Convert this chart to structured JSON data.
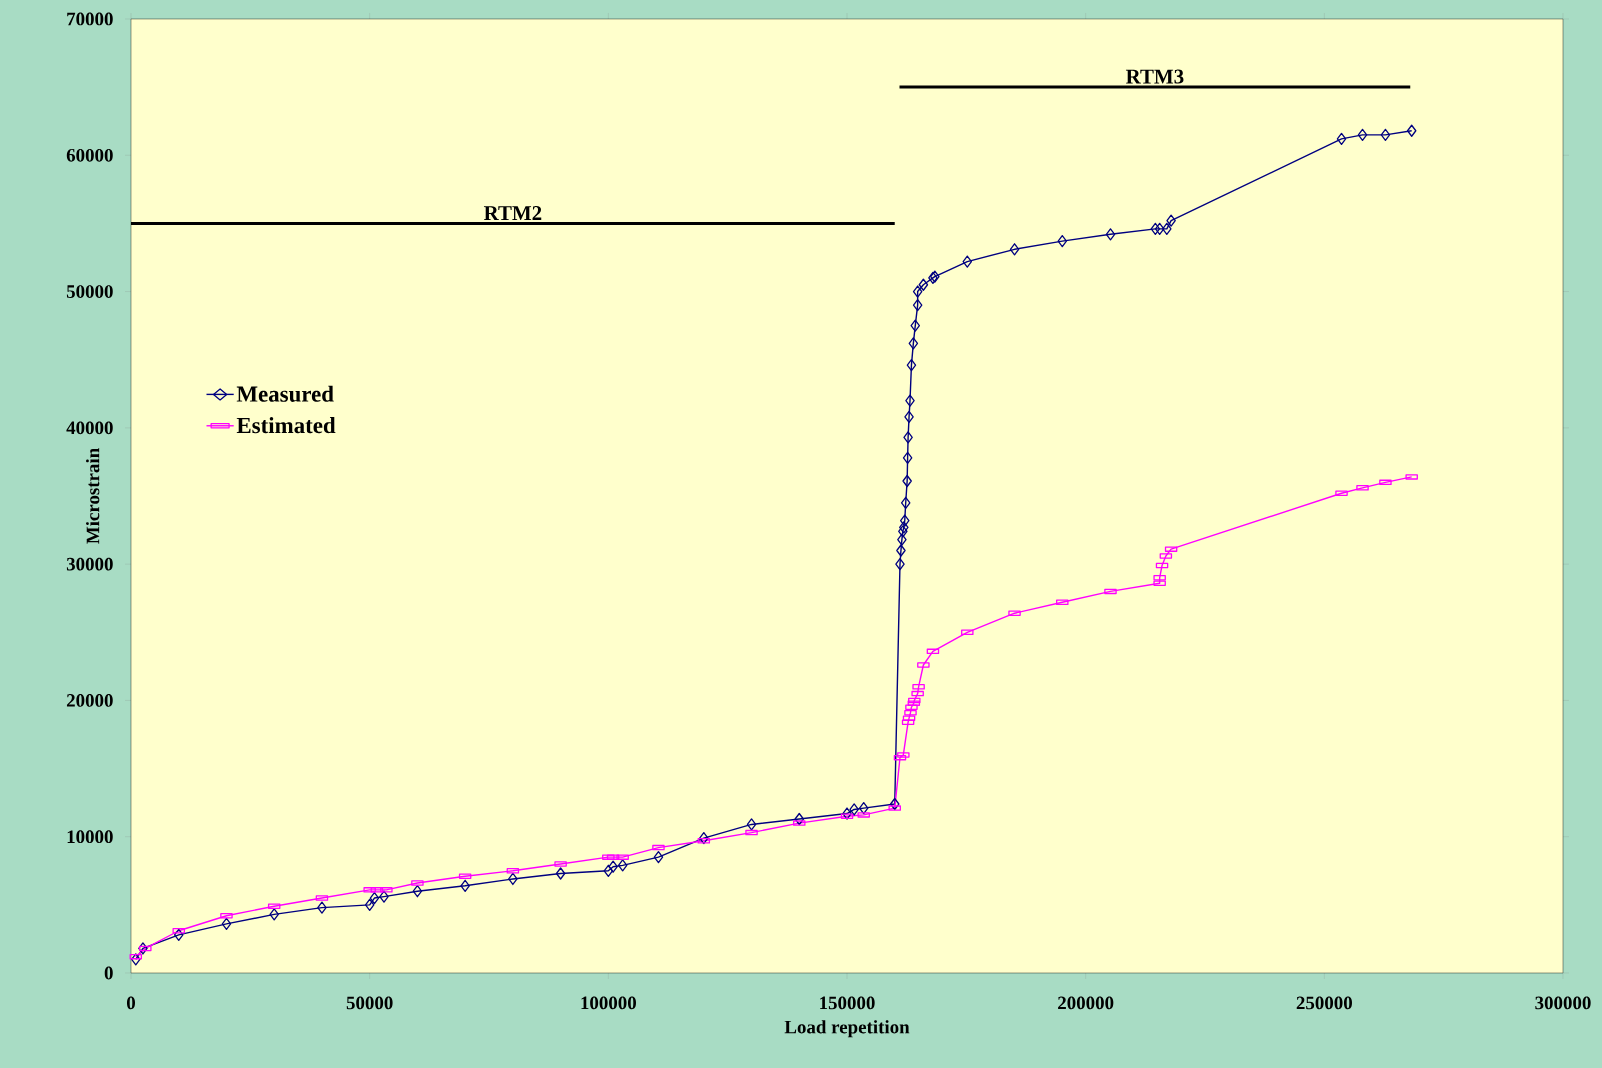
{
  "chart_data": {
    "type": "line",
    "xlabel": "Load repetition",
    "ylabel": "Microstrain",
    "xlim": [
      0,
      300000
    ],
    "xticks": [
      0,
      50000,
      100000,
      150000,
      200000,
      250000,
      300000
    ],
    "ylim": [
      0,
      70000
    ],
    "yticks": [
      0,
      10000,
      20000,
      30000,
      40000,
      50000,
      60000,
      70000
    ],
    "legend": "left",
    "grid": false,
    "line_style": "solid",
    "series": [
      {
        "name": "Measured",
        "color": "#000080",
        "marker": "diamond",
        "x": [
          1000,
          2500,
          10000,
          20000,
          30000,
          40000,
          50000,
          51000,
          53000,
          60000,
          70000,
          80000,
          90000,
          100000,
          101000,
          103000,
          110500,
          120000,
          130000,
          140000,
          150000,
          151500,
          153500,
          160000,
          161100,
          161300,
          161500,
          161700,
          161900,
          162100,
          162300,
          162600,
          162700,
          162800,
          163000,
          163200,
          163500,
          163900,
          164300,
          164800,
          164800,
          166000,
          168000,
          168400,
          175200,
          185100,
          195100,
          205200,
          214600,
          215500,
          217000,
          217900,
          253600,
          258000,
          262800,
          268300
        ],
        "values": [
          1000,
          1800,
          2800,
          3600,
          4300,
          4800,
          5000,
          5500,
          5600,
          6000,
          6400,
          6900,
          7300,
          7500,
          7800,
          7900,
          8500,
          9900,
          10900,
          11300,
          11700,
          12000,
          12100,
          12400,
          30000,
          31000,
          31800,
          32400,
          32700,
          33200,
          34500,
          36100,
          37800,
          39300,
          40800,
          42000,
          44600,
          46200,
          47500,
          49000,
          50000,
          50500,
          51000,
          51100,
          52200,
          53100,
          53700,
          54200,
          54600,
          54600,
          54600,
          55200,
          61200,
          61500,
          61500,
          61800
        ]
      },
      {
        "name": "Estimated",
        "color": "#ff00ff",
        "marker": "square",
        "x": [
          1000,
          3000,
          10000,
          20000,
          30000,
          40000,
          50000,
          51500,
          53500,
          60000,
          70000,
          80000,
          90000,
          100000,
          101000,
          103000,
          110500,
          120000,
          130000,
          140000,
          150000,
          153500,
          160000,
          161100,
          161800,
          162800,
          163000,
          163300,
          163500,
          164000,
          164100,
          164800,
          165000,
          166000,
          168000,
          175200,
          185100,
          195100,
          205200,
          215500,
          215500,
          216000,
          216800,
          217900,
          253600,
          258000,
          262800,
          268300
        ],
        "values": [
          1200,
          1800,
          3100,
          4200,
          4900,
          5500,
          6100,
          6100,
          6100,
          6600,
          7100,
          7500,
          8000,
          8500,
          8500,
          8500,
          9200,
          9700,
          10300,
          11000,
          11500,
          11600,
          12100,
          15800,
          16000,
          18400,
          18700,
          19100,
          19500,
          19800,
          20000,
          20500,
          21000,
          22600,
          23600,
          25000,
          26400,
          27200,
          28000,
          28600,
          29000,
          29900,
          30600,
          31100,
          35200,
          35600,
          36000,
          36400
        ]
      },
      {
        "name": "RTM2",
        "color": "#000000",
        "marker": "none",
        "x": [
          0,
          160000
        ],
        "values": [
          55000,
          55000
        ]
      },
      {
        "name": "RTM3",
        "color": "#000000",
        "marker": "none",
        "x": [
          161000,
          268000
        ],
        "values": [
          65000,
          65000
        ]
      }
    ]
  }
}
